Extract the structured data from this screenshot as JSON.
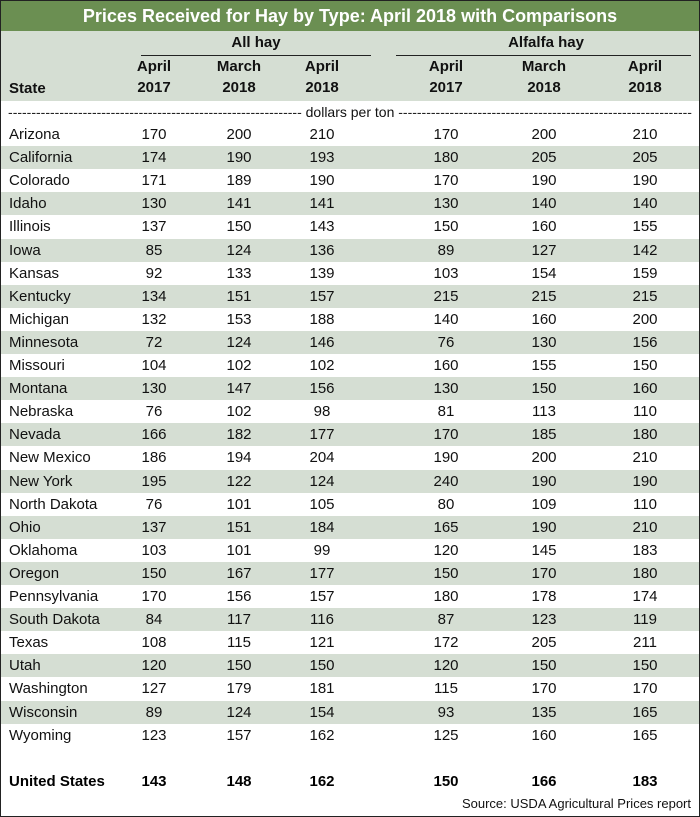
{
  "title": "Prices Received for Hay by Type: April 2018 with Comparisons",
  "groups": {
    "all_hay": "All hay",
    "alfalfa_hay": "Alfalfa hay"
  },
  "state_header": "State",
  "columns": [
    [
      "April",
      "2017"
    ],
    [
      "March",
      "2018"
    ],
    [
      "April",
      "2018"
    ],
    [
      "April",
      "2017"
    ],
    [
      "March",
      "2018"
    ],
    [
      "April",
      "2018"
    ]
  ],
  "units": "dollars per ton",
  "rows": [
    [
      "Arizona",
      "170",
      "200",
      "210",
      "170",
      "200",
      "210"
    ],
    [
      "California",
      "174",
      "190",
      "193",
      "180",
      "205",
      "205"
    ],
    [
      "Colorado",
      "171",
      "189",
      "190",
      "170",
      "190",
      "190"
    ],
    [
      "Idaho",
      "130",
      "141",
      "141",
      "130",
      "140",
      "140"
    ],
    [
      "Illinois",
      "137",
      "150",
      "143",
      "150",
      "160",
      "155"
    ],
    [
      "Iowa",
      "85",
      "124",
      "136",
      "89",
      "127",
      "142"
    ],
    [
      "Kansas",
      "92",
      "133",
      "139",
      "103",
      "154",
      "159"
    ],
    [
      "Kentucky",
      "134",
      "151",
      "157",
      "215",
      "215",
      "215"
    ],
    [
      "Michigan",
      "132",
      "153",
      "188",
      "140",
      "160",
      "200"
    ],
    [
      "Minnesota",
      "72",
      "124",
      "146",
      "76",
      "130",
      "156"
    ],
    [
      "Missouri",
      "104",
      "102",
      "102",
      "160",
      "155",
      "150"
    ],
    [
      "Montana",
      "130",
      "147",
      "156",
      "130",
      "150",
      "160"
    ],
    [
      "Nebraska",
      "76",
      "102",
      "98",
      "81",
      "113",
      "110"
    ],
    [
      "Nevada",
      "166",
      "182",
      "177",
      "170",
      "185",
      "180"
    ],
    [
      "New Mexico",
      "186",
      "194",
      "204",
      "190",
      "200",
      "210"
    ],
    [
      "New York",
      "195",
      "122",
      "124",
      "240",
      "190",
      "190"
    ],
    [
      "North Dakota",
      "76",
      "101",
      "105",
      "80",
      "109",
      "110"
    ],
    [
      "Ohio",
      "137",
      "151",
      "184",
      "165",
      "190",
      "210"
    ],
    [
      "Oklahoma",
      "103",
      "101",
      "99",
      "120",
      "145",
      "183"
    ],
    [
      "Oregon",
      "150",
      "167",
      "177",
      "150",
      "170",
      "180"
    ],
    [
      "Pennsylvania",
      "170",
      "156",
      "157",
      "180",
      "178",
      "174"
    ],
    [
      "South Dakota",
      "84",
      "117",
      "116",
      "87",
      "123",
      "119"
    ],
    [
      "Texas",
      "108",
      "115",
      "121",
      "172",
      "205",
      "211"
    ],
    [
      "Utah",
      "120",
      "150",
      "150",
      "120",
      "150",
      "150"
    ],
    [
      "Washington",
      "127",
      "179",
      "181",
      "115",
      "170",
      "170"
    ],
    [
      "Wisconsin",
      "89",
      "124",
      "154",
      "93",
      "135",
      "165"
    ],
    [
      "Wyoming",
      "123",
      "157",
      "162",
      "125",
      "160",
      "165"
    ]
  ],
  "united_states": [
    "United States",
    "143",
    "148",
    "162",
    "150",
    "166",
    "183"
  ],
  "source": "Source: USDA Agricultural Prices report",
  "colors": {
    "title_bg": "#6b8f52",
    "band": "#d5ded3"
  }
}
